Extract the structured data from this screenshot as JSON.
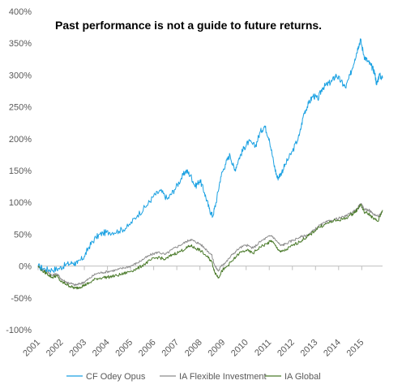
{
  "chart_data": {
    "type": "line",
    "title": "Past performance is not a guide to future returns.",
    "xlabel": "",
    "ylabel": "",
    "xlim": [
      2001.0,
      2015.9
    ],
    "ylim": [
      -100,
      400
    ],
    "y_ticks": [
      -100,
      -50,
      0,
      50,
      100,
      150,
      200,
      250,
      300,
      350,
      400
    ],
    "y_tick_labels": [
      "-100%",
      "-50%",
      "0%",
      "50%",
      "100%",
      "150%",
      "200%",
      "250%",
      "300%",
      "350%",
      "400%"
    ],
    "x_ticks": [
      2001,
      2002,
      2003,
      2004,
      2005,
      2006,
      2007,
      2008,
      2009,
      2010,
      2011,
      2012,
      2013,
      2014,
      2015
    ],
    "x_tick_labels": [
      "2001",
      "2002",
      "2003",
      "2004",
      "2005",
      "2006",
      "2007",
      "2008",
      "2009",
      "2010",
      "2011",
      "2012",
      "2013",
      "2014",
      "2015"
    ],
    "grid": false,
    "legend_position": "bottom",
    "series": [
      {
        "name": "CF Odey Opus",
        "color": "#1ba1e2",
        "points": [
          [
            2001.0,
            0
          ],
          [
            2001.3,
            -5
          ],
          [
            2001.6,
            -6
          ],
          [
            2001.9,
            -4
          ],
          [
            2002.2,
            2
          ],
          [
            2002.5,
            5
          ],
          [
            2002.7,
            4
          ],
          [
            2003.0,
            15
          ],
          [
            2003.2,
            30
          ],
          [
            2003.5,
            45
          ],
          [
            2003.8,
            52
          ],
          [
            2004.1,
            53
          ],
          [
            2004.5,
            55
          ],
          [
            2004.9,
            62
          ],
          [
            2005.3,
            80
          ],
          [
            2005.7,
            95
          ],
          [
            2006.0,
            110
          ],
          [
            2006.3,
            118
          ],
          [
            2006.6,
            105
          ],
          [
            2006.9,
            120
          ],
          [
            2007.2,
            138
          ],
          [
            2007.4,
            150
          ],
          [
            2007.6,
            142
          ],
          [
            2007.8,
            125
          ],
          [
            2008.0,
            135
          ],
          [
            2008.2,
            115
          ],
          [
            2008.4,
            90
          ],
          [
            2008.55,
            78
          ],
          [
            2008.7,
            100
          ],
          [
            2008.9,
            140
          ],
          [
            2009.1,
            160
          ],
          [
            2009.3,
            175
          ],
          [
            2009.5,
            150
          ],
          [
            2009.7,
            170
          ],
          [
            2009.9,
            185
          ],
          [
            2010.1,
            195
          ],
          [
            2010.4,
            188
          ],
          [
            2010.6,
            210
          ],
          [
            2010.8,
            220
          ],
          [
            2011.0,
            200
          ],
          [
            2011.2,
            160
          ],
          [
            2011.35,
            138
          ],
          [
            2011.5,
            145
          ],
          [
            2011.7,
            160
          ],
          [
            2012.0,
            180
          ],
          [
            2012.3,
            205
          ],
          [
            2012.5,
            240
          ],
          [
            2012.7,
            255
          ],
          [
            2012.9,
            268
          ],
          [
            2013.1,
            262
          ],
          [
            2013.3,
            280
          ],
          [
            2013.5,
            285
          ],
          [
            2013.7,
            290
          ],
          [
            2013.9,
            300
          ],
          [
            2014.1,
            290
          ],
          [
            2014.3,
            280
          ],
          [
            2014.5,
            300
          ],
          [
            2014.7,
            325
          ],
          [
            2014.85,
            345
          ],
          [
            2014.95,
            355
          ],
          [
            2015.1,
            330
          ],
          [
            2015.25,
            322
          ],
          [
            2015.4,
            315
          ],
          [
            2015.55,
            305
          ],
          [
            2015.65,
            285
          ],
          [
            2015.75,
            300
          ],
          [
            2015.9,
            295
          ]
        ]
      },
      {
        "name": "IA Flexible Investment",
        "color": "#8c8c8c",
        "points": [
          [
            2001.0,
            0
          ],
          [
            2001.2,
            -5
          ],
          [
            2001.4,
            -8
          ],
          [
            2001.6,
            -15
          ],
          [
            2001.8,
            -12
          ],
          [
            2002.0,
            -20
          ],
          [
            2002.2,
            -25
          ],
          [
            2002.4,
            -27
          ],
          [
            2002.6,
            -30
          ],
          [
            2002.8,
            -28
          ],
          [
            2003.0,
            -25
          ],
          [
            2003.2,
            -20
          ],
          [
            2003.5,
            -12
          ],
          [
            2003.8,
            -10
          ],
          [
            2004.1,
            -8
          ],
          [
            2004.4,
            -6
          ],
          [
            2004.7,
            -3
          ],
          [
            2005.0,
            0
          ],
          [
            2005.3,
            5
          ],
          [
            2005.6,
            12
          ],
          [
            2005.9,
            18
          ],
          [
            2006.2,
            22
          ],
          [
            2006.5,
            18
          ],
          [
            2006.8,
            26
          ],
          [
            2007.1,
            32
          ],
          [
            2007.4,
            38
          ],
          [
            2007.6,
            42
          ],
          [
            2007.8,
            38
          ],
          [
            2008.0,
            35
          ],
          [
            2008.3,
            25
          ],
          [
            2008.5,
            18
          ],
          [
            2008.65,
            0
          ],
          [
            2008.8,
            -8
          ],
          [
            2008.95,
            2
          ],
          [
            2009.1,
            5
          ],
          [
            2009.4,
            18
          ],
          [
            2009.7,
            28
          ],
          [
            2010.0,
            33
          ],
          [
            2010.3,
            28
          ],
          [
            2010.6,
            38
          ],
          [
            2010.9,
            45
          ],
          [
            2011.1,
            48
          ],
          [
            2011.3,
            40
          ],
          [
            2011.5,
            32
          ],
          [
            2011.7,
            35
          ],
          [
            2012.0,
            40
          ],
          [
            2012.3,
            45
          ],
          [
            2012.6,
            48
          ],
          [
            2012.8,
            52
          ],
          [
            2013.1,
            62
          ],
          [
            2013.4,
            68
          ],
          [
            2013.7,
            72
          ],
          [
            2014.0,
            75
          ],
          [
            2014.3,
            78
          ],
          [
            2014.6,
            85
          ],
          [
            2014.8,
            90
          ],
          [
            2014.95,
            98
          ],
          [
            2015.1,
            90
          ],
          [
            2015.3,
            88
          ],
          [
            2015.5,
            82
          ],
          [
            2015.7,
            78
          ],
          [
            2015.9,
            85
          ]
        ]
      },
      {
        "name": "IA Global",
        "color": "#4a7a2a",
        "points": [
          [
            2001.0,
            0
          ],
          [
            2001.2,
            -8
          ],
          [
            2001.4,
            -12
          ],
          [
            2001.6,
            -18
          ],
          [
            2001.8,
            -15
          ],
          [
            2002.0,
            -25
          ],
          [
            2002.2,
            -28
          ],
          [
            2002.4,
            -32
          ],
          [
            2002.6,
            -35
          ],
          [
            2002.8,
            -33
          ],
          [
            2003.0,
            -30
          ],
          [
            2003.2,
            -27
          ],
          [
            2003.5,
            -20
          ],
          [
            2003.8,
            -18
          ],
          [
            2004.1,
            -17
          ],
          [
            2004.4,
            -15
          ],
          [
            2004.7,
            -12
          ],
          [
            2005.0,
            -8
          ],
          [
            2005.3,
            -4
          ],
          [
            2005.6,
            3
          ],
          [
            2005.9,
            10
          ],
          [
            2006.2,
            14
          ],
          [
            2006.5,
            10
          ],
          [
            2006.8,
            18
          ],
          [
            2007.1,
            22
          ],
          [
            2007.4,
            28
          ],
          [
            2007.6,
            32
          ],
          [
            2007.8,
            28
          ],
          [
            2008.0,
            25
          ],
          [
            2008.3,
            15
          ],
          [
            2008.5,
            8
          ],
          [
            2008.65,
            -10
          ],
          [
            2008.8,
            -18
          ],
          [
            2008.95,
            -8
          ],
          [
            2009.1,
            -3
          ],
          [
            2009.4,
            8
          ],
          [
            2009.7,
            20
          ],
          [
            2010.0,
            25
          ],
          [
            2010.3,
            20
          ],
          [
            2010.6,
            30
          ],
          [
            2010.9,
            35
          ],
          [
            2011.1,
            40
          ],
          [
            2011.3,
            30
          ],
          [
            2011.5,
            22
          ],
          [
            2011.7,
            25
          ],
          [
            2012.0,
            32
          ],
          [
            2012.3,
            38
          ],
          [
            2012.6,
            45
          ],
          [
            2012.8,
            50
          ],
          [
            2013.1,
            60
          ],
          [
            2013.4,
            65
          ],
          [
            2013.7,
            70
          ],
          [
            2014.0,
            72
          ],
          [
            2014.3,
            75
          ],
          [
            2014.6,
            82
          ],
          [
            2014.8,
            88
          ],
          [
            2014.95,
            97
          ],
          [
            2015.1,
            85
          ],
          [
            2015.3,
            82
          ],
          [
            2015.5,
            75
          ],
          [
            2015.7,
            70
          ],
          [
            2015.9,
            88
          ]
        ]
      }
    ]
  }
}
